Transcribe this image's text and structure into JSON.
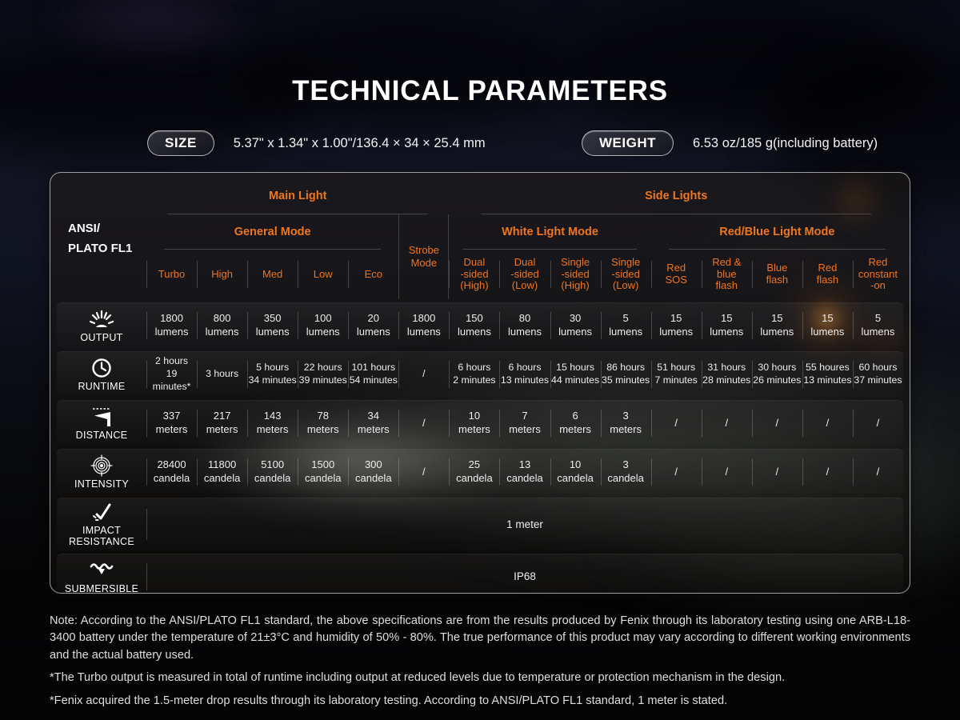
{
  "colors": {
    "accent_orange": "#f0761b",
    "text_white": "#efefef"
  },
  "page": {
    "title": "TECHNICAL PARAMETERS"
  },
  "specs": {
    "size_label": "SIZE",
    "size_value": "5.37\" x 1.34\" x 1.00\"/136.4 × 34 × 25.4 mm",
    "weight_label": "WEIGHT",
    "weight_value": "6.53 oz/185 g(including battery)"
  },
  "table": {
    "corner_label": "ANSI/\nPLATO FL1",
    "groups": {
      "main": "Main Light",
      "side": "Side Lights",
      "general": "General Mode",
      "strobe": "Strobe\nMode",
      "white": "White Light Mode",
      "redblue": "Red/Blue Light Mode"
    },
    "columns": {
      "general": [
        "Turbo",
        "High",
        "Med",
        "Low",
        "Eco"
      ],
      "white": [
        "Dual\n-sided\n(High)",
        "Dual\n-sided\n(Low)",
        "Single\n-sided\n(High)",
        "Single\n-sided\n(Low)"
      ],
      "redblue": [
        "Red\nSOS",
        "Red &\nblue\nflash",
        "Blue\nflash",
        "Red\nflash",
        "Red\nconstant\n-on"
      ]
    },
    "rows": [
      {
        "id": "output",
        "label": "OUTPUT",
        "icon": "output-icon",
        "values": [
          "1800\nlumens",
          "800\nlumens",
          "350\nlumens",
          "100\nlumens",
          "20\nlumens",
          "1800\nlumens",
          "150\nlumens",
          "80\nlumens",
          "30\nlumens",
          "5\nlumens",
          "15\nlumens",
          "15\nlumens",
          "15\nlumens",
          "15\nlumens",
          "5\nlumens"
        ]
      },
      {
        "id": "runtime",
        "label": "RUNTIME",
        "icon": "runtime-icon",
        "values": [
          "2 hours\n19 minutes*",
          "3 hours",
          "5 hours\n34 minutes",
          "22 hours\n39 minutes",
          "101 hours\n54 minutes",
          "/",
          "6 hours\n2 minutes",
          "6 hours\n13 minutes",
          "15 hours\n44 minutes",
          "86 hours\n35 minutes",
          "51 hours\n7 minutes",
          "31 hours\n28 minutes",
          "30 hours\n26 minutes",
          "55 houres\n13 minutes",
          "60 hours\n37 minutes"
        ]
      },
      {
        "id": "distance",
        "label": "DISTANCE",
        "icon": "distance-icon",
        "values": [
          "337\nmeters",
          "217\nmeters",
          "143\nmeters",
          "78\nmeters",
          "34\nmeters",
          "/",
          "10\nmeters",
          "7\nmeters",
          "6\nmeters",
          "3\nmeters",
          "/",
          "/",
          "/",
          "/",
          "/"
        ]
      },
      {
        "id": "intensity",
        "label": "INTENSITY",
        "icon": "intensity-icon",
        "values": [
          "28400\ncandela",
          "11800\ncandela",
          "5100\ncandela",
          "1500\ncandela",
          "300\ncandela",
          "/",
          "25\ncandela",
          "13\ncandela",
          "10\ncandela",
          "3\ncandela",
          "/",
          "/",
          "/",
          "/",
          "/"
        ]
      },
      {
        "id": "impact",
        "label": "IMPACT RESISTANCE",
        "icon": "impact-icon",
        "span_value": "1 meter"
      },
      {
        "id": "submersible",
        "label": "SUBMERSIBLE",
        "icon": "submersible-icon",
        "span_value": "IP68"
      }
    ]
  },
  "notes": [
    "Note: According to the ANSI/PLATO FL1 standard, the above specifications are from the results produced by Fenix through its laboratory testing using one ARB-L18-3400 battery under the temperature of 21±3°C and humidity of 50% - 80%. The true performance of this product may vary according to different working environments and the actual battery used.",
    "*The Turbo output is measured in total of runtime including output at reduced levels due to temperature or protection mechanism in the design.",
    "*Fenix acquired the 1.5-meter drop results through its laboratory testing. According to ANSI/PLATO FL1 standard, 1 meter is stated."
  ]
}
